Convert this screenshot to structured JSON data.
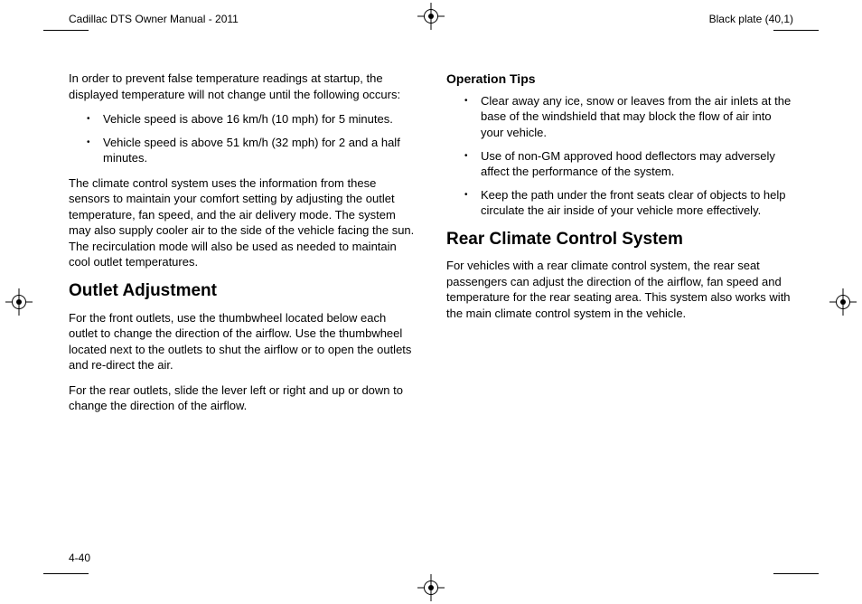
{
  "header": {
    "left": "Cadillac DTS Owner Manual - 2011",
    "right": "Black plate (40,1)"
  },
  "left_col": {
    "intro": "In order to prevent false temperature readings at startup, the displayed temperature will not change until the following occurs:",
    "bullets": [
      "Vehicle speed is above 16 km/h (10 mph) for 5 minutes.",
      "Vehicle speed is above 51 km/h (32 mph) for 2 and a half minutes."
    ],
    "para2": "The climate control system uses the information from these sensors to maintain your comfort setting by adjusting the outlet temperature, fan speed, and the air delivery mode. The system may also supply cooler air to the side of the vehicle facing the sun. The recirculation mode will also be used as needed to maintain cool outlet temperatures.",
    "h2": "Outlet Adjustment",
    "para3": "For the front outlets, use the thumbwheel located below each outlet to change the direction of the airflow. Use the thumbwheel located next to the outlets to shut the airflow or to open the outlets and re-direct the air.",
    "para4": "For the rear outlets, slide the lever left or right and up or down to change the direction of the airflow."
  },
  "right_col": {
    "h3": "Operation Tips",
    "bullets": [
      "Clear away any ice, snow or leaves from the air inlets at the base of the windshield that may block the flow of air into your vehicle.",
      "Use of non-GM approved hood deflectors may adversely affect the performance of the system.",
      "Keep the path under the front seats clear of objects to help circulate the air inside of your vehicle more effectively."
    ],
    "h2": "Rear Climate Control System",
    "para": "For vehicles with a rear climate control system, the rear seat passengers can adjust the direction of the airflow, fan speed and temperature for the rear seating area. This system also works with the main climate control system in the vehicle."
  },
  "page_number": "4-40",
  "bullet_glyph": "•"
}
